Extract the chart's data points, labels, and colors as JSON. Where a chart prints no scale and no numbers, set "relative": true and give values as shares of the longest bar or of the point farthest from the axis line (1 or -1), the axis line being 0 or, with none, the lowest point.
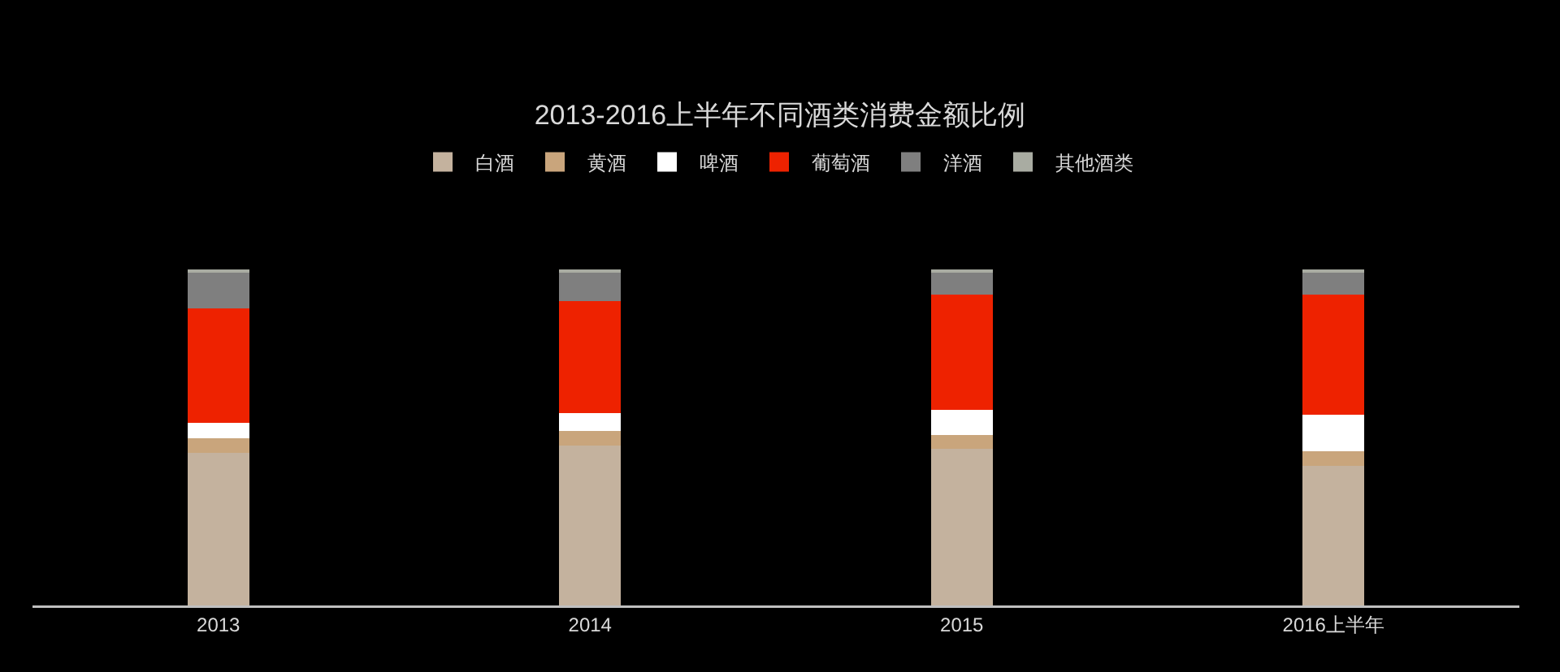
{
  "chart_data": {
    "type": "bar",
    "title": "2013-2016上半年不同酒类消费金额比例",
    "categories": [
      "2013",
      "2014",
      "2015",
      "2016上半年"
    ],
    "stacked": true,
    "relative": true,
    "legend": "top",
    "series": [
      {
        "name": "白酒",
        "color": "#c4b29e",
        "values": [
          0.455,
          0.475,
          0.467,
          0.416
        ]
      },
      {
        "name": "黄酒",
        "color": "#c9a57c",
        "values": [
          0.042,
          0.044,
          0.041,
          0.044
        ]
      },
      {
        "name": "啤酒",
        "color": "#ffffff",
        "values": [
          0.047,
          0.053,
          0.073,
          0.108
        ]
      },
      {
        "name": "葡萄酒",
        "color": "#ee2200",
        "values": [
          0.34,
          0.334,
          0.343,
          0.357
        ]
      },
      {
        "name": "洋酒",
        "color": "#7f7f7f",
        "values": [
          0.106,
          0.084,
          0.066,
          0.065
        ]
      },
      {
        "name": "其他酒类",
        "color": "#a9aca2",
        "values": [
          0.01,
          0.01,
          0.01,
          0.01
        ]
      }
    ]
  }
}
